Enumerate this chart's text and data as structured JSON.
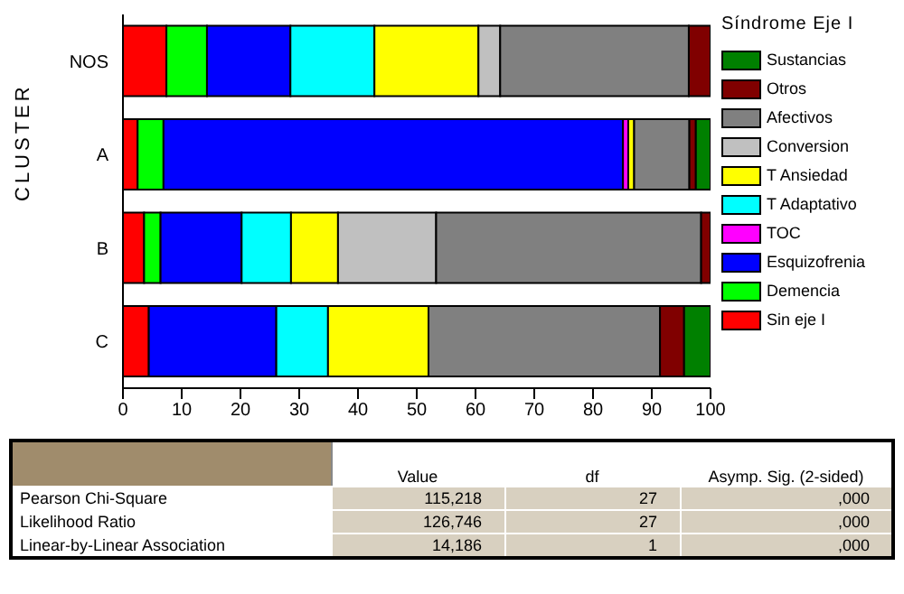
{
  "chart_data": {
    "type": "bar",
    "orientation": "horizontal",
    "stacked": true,
    "ylabel": "CLUSTER",
    "legend_title": "Síndrome Eje I",
    "legend": "right",
    "categories": [
      "NOS",
      "A",
      "B",
      "C"
    ],
    "xlim": [
      0,
      100
    ],
    "xticks": [
      0,
      10,
      20,
      30,
      40,
      50,
      60,
      70,
      80,
      90,
      100
    ],
    "grid": false,
    "series": [
      {
        "name": "Sin eje I",
        "color": "#ff0000",
        "values": [
          7.4,
          2.5,
          3.6,
          4.4
        ]
      },
      {
        "name": "Demencia",
        "color": "#00ff00",
        "values": [
          6.9,
          4.4,
          2.8,
          0
        ]
      },
      {
        "name": "Esquizofrenia",
        "color": "#0000ff",
        "values": [
          14.2,
          78.2,
          13.8,
          21.7
        ]
      },
      {
        "name": "TOC",
        "color": "#ff00ff",
        "values": [
          0,
          0.9,
          0,
          0
        ]
      },
      {
        "name": "T Adaptativo",
        "color": "#00ffff",
        "values": [
          14.3,
          0,
          8.4,
          8.8
        ]
      },
      {
        "name": "T Ansiedad",
        "color": "#ffff00",
        "values": [
          17.7,
          1.0,
          8.0,
          17.1
        ]
      },
      {
        "name": "Conversion",
        "color": "#c0c0c0",
        "values": [
          3.7,
          0,
          16.7,
          0
        ]
      },
      {
        "name": "Afectivos",
        "color": "#808080",
        "values": [
          32.1,
          9.4,
          45.1,
          39.4
        ]
      },
      {
        "name": "Otros",
        "color": "#800000",
        "values": [
          3.7,
          1.1,
          1.6,
          4.1
        ]
      },
      {
        "name": "Sustancias",
        "color": "#008000",
        "values": [
          0,
          2.5,
          0,
          4.5
        ]
      }
    ],
    "annotations": [
      "Value",
      "df",
      "Asymp. Sig. (2-sided)",
      "Pearson Chi-Square",
      "115,218",
      "27",
      ",000",
      "Likelihood Ratio",
      "126,746",
      "27",
      ",000",
      "Linear-by-Linear Association",
      "14,186",
      "1",
      ",000"
    ]
  }
}
